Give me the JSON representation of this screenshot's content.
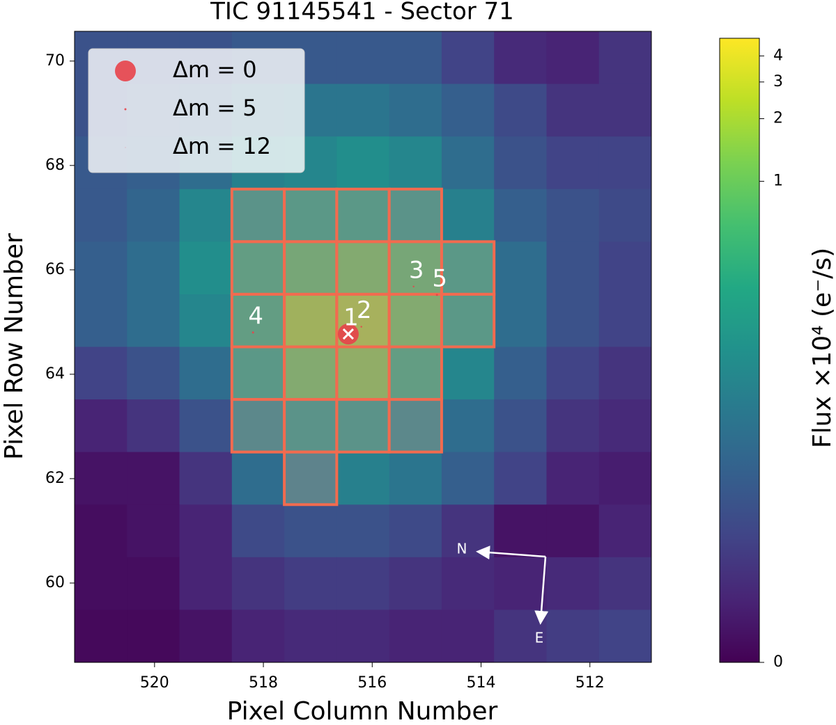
{
  "chart_data": {
    "type": "heatmap",
    "title": "TIC 91145541 - Sector 71",
    "x_label": "Pixel Column Number",
    "y_label": "Pixel Row Number",
    "colorbar_label": "Flux ×10⁴ (e⁻/s)",
    "columns": [
      521,
      520,
      519,
      518,
      517,
      516,
      515,
      514,
      513,
      512,
      511
    ],
    "rows": [
      70,
      69,
      68,
      67,
      66,
      65,
      64,
      63,
      62,
      61,
      60,
      59
    ],
    "values": [
      [
        0.023,
        0.023,
        0.023,
        0.029,
        0.029,
        0.029,
        0.029,
        0.015,
        0.0064,
        0.0049,
        0.009
      ],
      [
        0.023,
        0.029,
        0.034,
        0.053,
        0.067,
        0.067,
        0.053,
        0.034,
        0.018,
        0.009,
        0.009
      ],
      [
        0.029,
        0.034,
        0.053,
        0.093,
        0.11,
        0.137,
        0.11,
        0.053,
        0.023,
        0.015,
        0.015
      ],
      [
        0.029,
        0.042,
        0.11,
        0.22,
        0.31,
        0.31,
        0.22,
        0.093,
        0.034,
        0.023,
        0.018
      ],
      [
        0.034,
        0.053,
        0.137,
        0.44,
        0.87,
        1.22,
        0.87,
        0.31,
        0.053,
        0.023,
        0.015
      ],
      [
        0.034,
        0.053,
        0.11,
        0.44,
        2.4,
        2.8,
        1.22,
        0.31,
        0.053,
        0.023,
        0.015
      ],
      [
        0.015,
        0.023,
        0.053,
        0.31,
        1.22,
        1.7,
        0.44,
        0.11,
        0.034,
        0.015,
        0.009
      ],
      [
        0.0049,
        0.009,
        0.023,
        0.11,
        0.22,
        0.22,
        0.11,
        0.053,
        0.023,
        0.009,
        0.0064
      ],
      [
        0.0021,
        0.0021,
        0.009,
        0.053,
        0.078,
        0.093,
        0.067,
        0.034,
        0.015,
        0.0049,
        0.0037
      ],
      [
        0.0013,
        0.0021,
        0.0049,
        0.018,
        0.023,
        0.023,
        0.018,
        0.009,
        0.0021,
        0.0021,
        0.0049
      ],
      [
        0.0013,
        0.0013,
        0.0049,
        0.009,
        0.012,
        0.012,
        0.009,
        0.0064,
        0.0049,
        0.0064,
        0.009
      ],
      [
        0.0008,
        0.0008,
        0.0021,
        0.0049,
        0.0064,
        0.0064,
        0.0049,
        0.0049,
        0.009,
        0.012,
        0.015
      ]
    ],
    "clim": [
      0,
      4.86
    ],
    "cticks": [
      0,
      1,
      2,
      3,
      4
    ],
    "xlim": [
      521.47,
      510.87
    ],
    "ylim": [
      58.48,
      70.57
    ],
    "xticks": [
      520,
      518,
      516,
      514,
      512
    ],
    "yticks": [
      60,
      62,
      64,
      66,
      68,
      70
    ],
    "aperture": {
      "color": "#f26b4f",
      "pixels": [
        [
          518,
          67
        ],
        [
          517,
          67
        ],
        [
          516,
          67
        ],
        [
          515,
          67
        ],
        [
          518,
          66
        ],
        [
          517,
          66
        ],
        [
          516,
          66
        ],
        [
          515,
          66
        ],
        [
          514,
          66
        ],
        [
          518,
          65
        ],
        [
          517,
          65
        ],
        [
          516,
          65
        ],
        [
          515,
          65
        ],
        [
          514,
          65
        ],
        [
          518,
          64
        ],
        [
          517,
          64
        ],
        [
          516,
          64
        ],
        [
          515,
          64
        ],
        [
          518,
          63
        ],
        [
          517,
          63
        ],
        [
          516,
          63
        ],
        [
          515,
          63
        ],
        [
          517,
          62
        ]
      ]
    },
    "stars": {
      "color": "#e8434a",
      "labels": [
        "1",
        "2",
        "3",
        "4",
        "5"
      ],
      "x": [
        516.44,
        516.2,
        515.24,
        518.19,
        514.81
      ],
      "y": [
        64.77,
        64.91,
        65.68,
        64.8,
        65.52
      ],
      "dm": [
        0,
        8,
        6,
        5,
        5
      ]
    },
    "legend": {
      "labels": [
        "Δm =  0",
        "Δm =  5",
        "Δm =  12"
      ],
      "dm": [
        0,
        5,
        12
      ]
    },
    "compass": {
      "north": "N",
      "east": "E"
    }
  }
}
